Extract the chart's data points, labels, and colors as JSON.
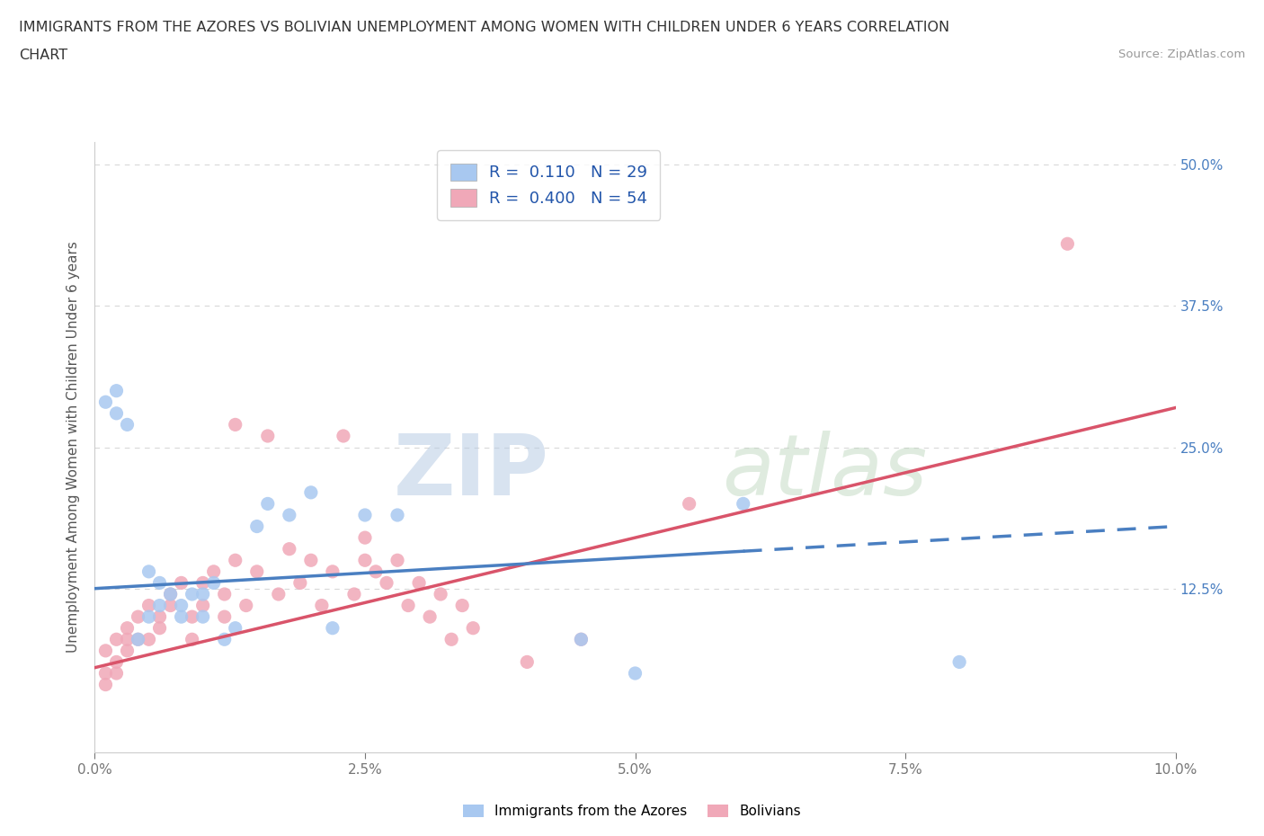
{
  "title_line1": "IMMIGRANTS FROM THE AZORES VS BOLIVIAN UNEMPLOYMENT AMONG WOMEN WITH CHILDREN UNDER 6 YEARS CORRELATION",
  "title_line2": "CHART",
  "source": "Source: ZipAtlas.com",
  "ylabel": "Unemployment Among Women with Children Under 6 years",
  "xlim": [
    0.0,
    0.1
  ],
  "ylim": [
    -0.02,
    0.52
  ],
  "xtick_labels": [
    "0.0%",
    "2.5%",
    "5.0%",
    "7.5%",
    "10.0%"
  ],
  "xtick_vals": [
    0.0,
    0.025,
    0.05,
    0.075,
    0.1
  ],
  "ytick_vals": [
    0.125,
    0.25,
    0.375,
    0.5
  ],
  "ytick_labels_right": [
    "12.5%",
    "25.0%",
    "37.5%",
    "50.0%"
  ],
  "blue_color": "#a8c8f0",
  "pink_color": "#f0a8b8",
  "blue_line_color": "#4a7fc1",
  "pink_line_color": "#d9546a",
  "blue_R": 0.11,
  "blue_N": 29,
  "pink_R": 0.4,
  "pink_N": 54,
  "blue_scatter_x": [
    0.001,
    0.002,
    0.002,
    0.003,
    0.004,
    0.005,
    0.005,
    0.006,
    0.006,
    0.007,
    0.008,
    0.008,
    0.009,
    0.01,
    0.01,
    0.011,
    0.012,
    0.013,
    0.015,
    0.016,
    0.018,
    0.02,
    0.022,
    0.025,
    0.028,
    0.045,
    0.05,
    0.06,
    0.08
  ],
  "blue_scatter_y": [
    0.29,
    0.3,
    0.28,
    0.27,
    0.08,
    0.14,
    0.1,
    0.11,
    0.13,
    0.12,
    0.1,
    0.11,
    0.12,
    0.12,
    0.1,
    0.13,
    0.08,
    0.09,
    0.18,
    0.2,
    0.19,
    0.21,
    0.09,
    0.19,
    0.19,
    0.08,
    0.05,
    0.2,
    0.06
  ],
  "pink_scatter_x": [
    0.001,
    0.001,
    0.001,
    0.002,
    0.002,
    0.002,
    0.003,
    0.003,
    0.003,
    0.004,
    0.004,
    0.005,
    0.005,
    0.006,
    0.006,
    0.007,
    0.007,
    0.008,
    0.009,
    0.009,
    0.01,
    0.01,
    0.011,
    0.012,
    0.012,
    0.013,
    0.013,
    0.014,
    0.015,
    0.016,
    0.017,
    0.018,
    0.019,
    0.02,
    0.021,
    0.022,
    0.023,
    0.024,
    0.025,
    0.025,
    0.026,
    0.027,
    0.028,
    0.029,
    0.03,
    0.031,
    0.032,
    0.033,
    0.034,
    0.035,
    0.04,
    0.045,
    0.055,
    0.09
  ],
  "pink_scatter_y": [
    0.07,
    0.05,
    0.04,
    0.08,
    0.06,
    0.05,
    0.09,
    0.07,
    0.08,
    0.1,
    0.08,
    0.11,
    0.08,
    0.1,
    0.09,
    0.12,
    0.11,
    0.13,
    0.1,
    0.08,
    0.13,
    0.11,
    0.14,
    0.12,
    0.1,
    0.27,
    0.15,
    0.11,
    0.14,
    0.26,
    0.12,
    0.16,
    0.13,
    0.15,
    0.11,
    0.14,
    0.26,
    0.12,
    0.17,
    0.15,
    0.14,
    0.13,
    0.15,
    0.11,
    0.13,
    0.1,
    0.12,
    0.08,
    0.11,
    0.09,
    0.06,
    0.08,
    0.2,
    0.43
  ],
  "watermark_zip": "ZIP",
  "watermark_atlas": "atlas",
  "background_color": "#ffffff",
  "grid_color": "#d8d8d8",
  "blue_line_x_end": 0.06,
  "blue_line_x_dash_start": 0.06,
  "blue_line_intercept": 0.125,
  "blue_line_slope": 0.55,
  "pink_line_intercept": 0.055,
  "pink_line_slope": 2.3
}
